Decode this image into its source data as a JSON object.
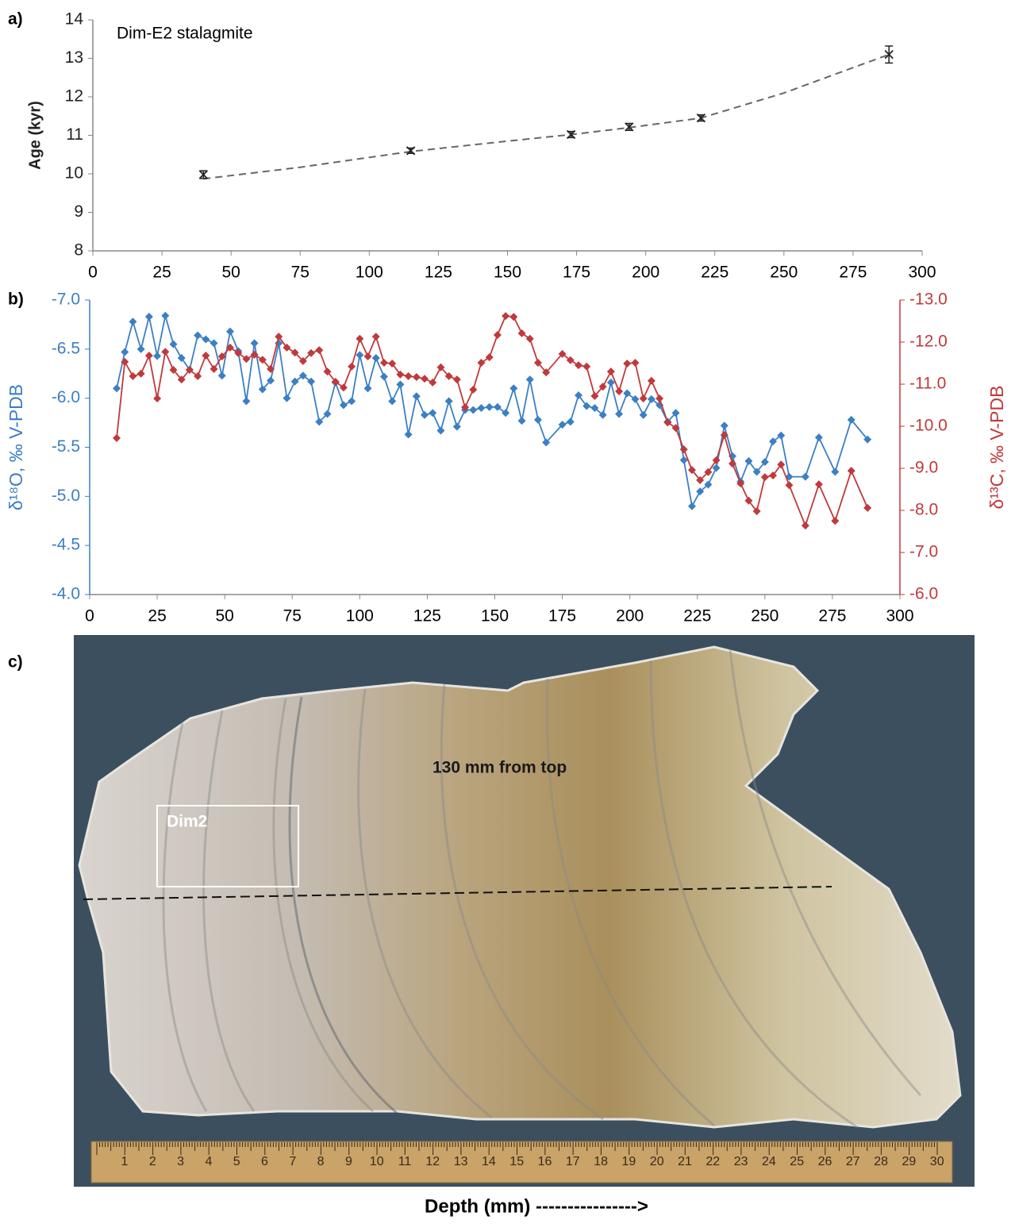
{
  "chart_data": [
    {
      "type": "scatter",
      "panel_label": "a)",
      "title": "Dim-E2 stalagmite",
      "ylabel": "Age (kyr)",
      "xlim": [
        0,
        300
      ],
      "xticks": [
        0,
        25,
        50,
        75,
        100,
        125,
        150,
        175,
        200,
        225,
        250,
        275,
        300
      ],
      "ylim": [
        8,
        14
      ],
      "yticks": [
        8,
        9,
        10,
        11,
        12,
        13,
        14
      ],
      "series": [
        {
          "color": "#222222",
          "x": [
            40,
            115,
            173,
            194,
            220,
            288
          ],
          "values": [
            9.98,
            10.6,
            11.02,
            11.22,
            11.45,
            13.1
          ],
          "errors": [
            0.1,
            0.07,
            0.08,
            0.09,
            0.08,
            0.22
          ]
        }
      ],
      "trend": {
        "color": "#666666",
        "x": [
          40,
          75,
          115,
          150,
          173,
          194,
          220,
          250,
          288
        ],
        "values": [
          9.87,
          10.17,
          10.58,
          10.85,
          11.02,
          11.2,
          11.45,
          12.1,
          13.1
        ]
      }
    },
    {
      "type": "line",
      "panel_label": "b)",
      "ylabel": "δ¹⁸O, ‰ V-PDB",
      "y2label": "δ¹³C, ‰ V-PDB",
      "xlim": [
        0,
        300
      ],
      "xticks": [
        0,
        25,
        50,
        75,
        100,
        125,
        150,
        175,
        200,
        225,
        250,
        275,
        300
      ],
      "ylim": [
        -4,
        -7
      ],
      "y_axis_color": "#3b7fc4",
      "yticks": [
        {
          "value": -7,
          "label": "-7.0"
        },
        -6.5,
        {
          "value": -6,
          "label": "-6.0"
        },
        -5.5,
        {
          "value": -5,
          "label": "-5.0"
        },
        -4.5,
        {
          "value": -4,
          "label": "-4.0"
        }
      ],
      "y2lim": [
        -6,
        -13
      ],
      "y2_axis_color": "#c0393b",
      "y2ticks": [
        {
          "value": -13,
          "label": "-13.0"
        },
        {
          "value": -12,
          "label": "-12.0"
        },
        {
          "value": -11,
          "label": "-11.0"
        },
        {
          "value": -10,
          "label": "-10.0"
        },
        {
          "value": -9,
          "label": "-9.0"
        },
        {
          "value": -8,
          "label": "-8.0"
        },
        {
          "value": -7,
          "label": "-7.0"
        },
        {
          "value": -6,
          "label": "-6.0"
        }
      ],
      "x": [
        10,
        13,
        16,
        19,
        22,
        25,
        28,
        31,
        34,
        37,
        40,
        43,
        46,
        49,
        52,
        55,
        58,
        61,
        64,
        67,
        70,
        73,
        76,
        79,
        82,
        85,
        88,
        91,
        94,
        97,
        100,
        103,
        106,
        109,
        112,
        115,
        118,
        121,
        124,
        127,
        130,
        133,
        136,
        139,
        142,
        145,
        148,
        151,
        154,
        157,
        160,
        163,
        166,
        169,
        175,
        178,
        181,
        184,
        187,
        190,
        193,
        196,
        199,
        202,
        205,
        208,
        211,
        214,
        217,
        220,
        223,
        226,
        229,
        232,
        235,
        238,
        241,
        244,
        247,
        250,
        253,
        256,
        259,
        265,
        270,
        276,
        282,
        288
      ],
      "series": [
        {
          "color": "#3b7fc4",
          "values": [
            -6.1,
            -6.47,
            -6.78,
            -6.5,
            -6.83,
            -6.43,
            -6.84,
            -6.55,
            -6.41,
            -6.29,
            -6.64,
            -6.6,
            -6.56,
            -6.23,
            -6.68,
            -6.48,
            -5.97,
            -6.56,
            -6.09,
            -6.18,
            -6.56,
            -6.0,
            -6.17,
            -6.23,
            -6.17,
            -5.76,
            -5.84,
            -6.16,
            -5.93,
            -5.97,
            -6.44,
            -6.1,
            -6.41,
            -6.22,
            -5.97,
            -6.14,
            -5.63,
            -6.02,
            -5.83,
            -5.85,
            -5.67,
            -5.97,
            -5.71,
            -5.88,
            -5.88,
            -5.9,
            -5.91,
            -5.91,
            -5.85,
            -6.1,
            -5.77,
            -6.19,
            -5.78,
            -5.55,
            -5.73,
            -5.76,
            -6.03,
            -5.92,
            -5.9,
            -5.83,
            -6.16,
            -5.84,
            -6.05,
            -5.99,
            -5.83,
            -5.99,
            -5.93,
            -5.76,
            -5.85,
            -5.37,
            -4.9,
            -5.05,
            -5.12,
            -5.29,
            -5.72,
            -5.41,
            -5.15,
            -5.36,
            -5.25,
            -5.35,
            -5.56,
            -5.62,
            -5.2,
            -5.2,
            -5.6,
            -5.25,
            -5.78,
            -5.58
          ]
        },
        {
          "color": "#c0393b",
          "axis": "y2",
          "values": [
            -9.72,
            -11.53,
            -11.19,
            -11.25,
            -11.68,
            -10.66,
            -11.77,
            -11.34,
            -11.11,
            -11.34,
            -11.19,
            -11.68,
            -11.36,
            -11.66,
            -11.87,
            -11.74,
            -11.6,
            -11.7,
            -11.58,
            -11.36,
            -12.13,
            -11.87,
            -11.75,
            -11.55,
            -11.74,
            -11.81,
            -11.3,
            -11.06,
            -10.92,
            -11.42,
            -12.08,
            -11.66,
            -12.13,
            -11.51,
            -11.49,
            -11.23,
            -11.19,
            -11.17,
            -11.13,
            -11.04,
            -11.4,
            -11.19,
            -11.11,
            -10.45,
            -10.87,
            -11.51,
            -11.64,
            -12.17,
            -12.62,
            -12.6,
            -12.21,
            -12.08,
            -11.51,
            -11.28,
            -11.72,
            -11.57,
            -11.45,
            -11.42,
            -10.72,
            -10.94,
            -11.3,
            -10.83,
            -11.49,
            -11.51,
            -10.66,
            -11.08,
            -10.66,
            -10.09,
            -9.96,
            -9.45,
            -8.96,
            -8.72,
            -8.91,
            -9.19,
            -9.79,
            -9.11,
            -8.64,
            -8.23,
            -7.98,
            -8.79,
            -8.83,
            -9.09,
            -8.6,
            -7.64,
            -8.62,
            -7.75,
            -8.94,
            -8.06
          ]
        }
      ]
    }
  ],
  "photo": {
    "panel_label": "c)",
    "annotation": "130 mm from top",
    "box_label": "Dim2",
    "ruler_labels": [
      "1",
      "2",
      "3",
      "4",
      "5",
      "6",
      "7",
      "8",
      "9",
      "10",
      "11",
      "12",
      "13",
      "14",
      "15",
      "16",
      "17",
      "18",
      "19",
      "20",
      "21",
      "22",
      "23",
      "24",
      "25",
      "26",
      "27",
      "28",
      "29",
      "30"
    ],
    "caption": "Depth (mm) ---------------->"
  }
}
